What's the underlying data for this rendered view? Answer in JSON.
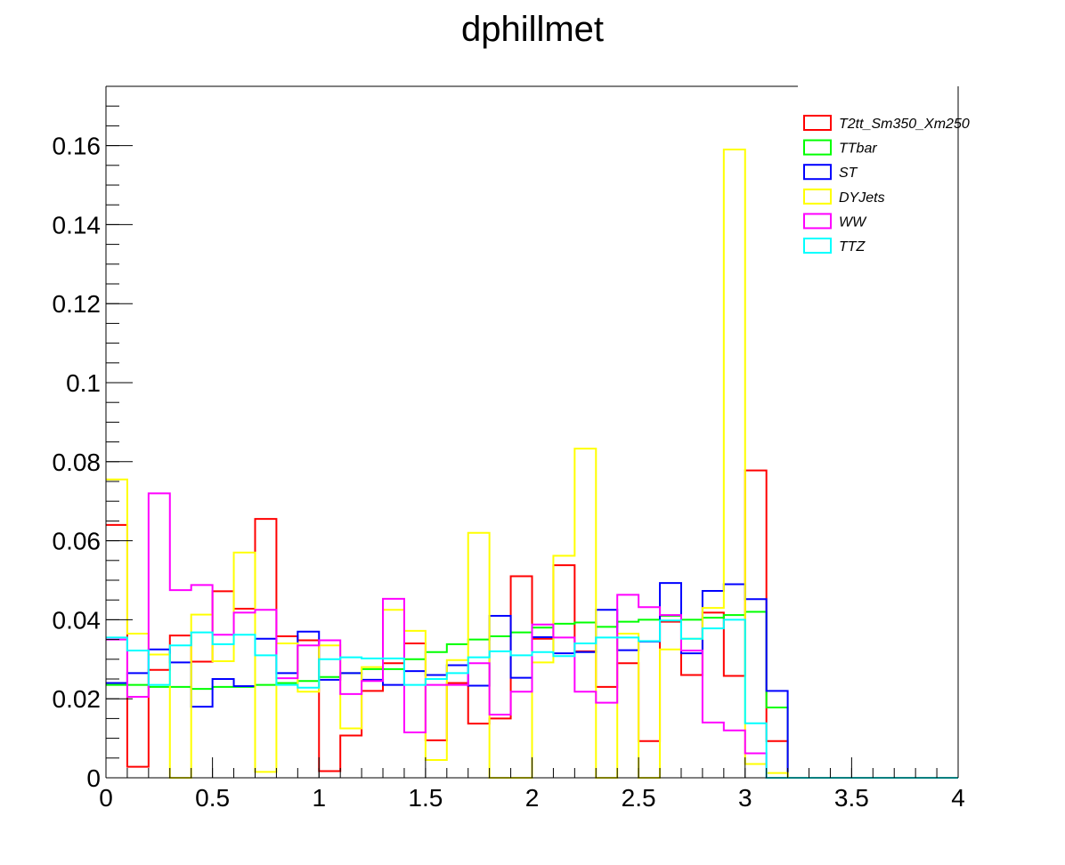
{
  "chart_data": {
    "type": "histogram-step",
    "title": "dphillmet",
    "xlabel": "",
    "ylabel": "",
    "xlim": [
      0,
      4
    ],
    "ylim": [
      0,
      0.175
    ],
    "bin_width": 0.1,
    "x_ticks": [
      {
        "value": 0,
        "label": "0"
      },
      {
        "value": 0.5,
        "label": "0.5"
      },
      {
        "value": 1,
        "label": "1"
      },
      {
        "value": 1.5,
        "label": "1.5"
      },
      {
        "value": 2,
        "label": "2"
      },
      {
        "value": 2.5,
        "label": "2.5"
      },
      {
        "value": 3,
        "label": "3"
      },
      {
        "value": 3.5,
        "label": "3.5"
      },
      {
        "value": 4,
        "label": "4"
      }
    ],
    "y_ticks": [
      {
        "value": 0,
        "label": "0"
      },
      {
        "value": 0.02,
        "label": "0.02"
      },
      {
        "value": 0.04,
        "label": "0.04"
      },
      {
        "value": 0.06,
        "label": "0.06"
      },
      {
        "value": 0.08,
        "label": "0.08"
      },
      {
        "value": 0.1,
        "label": "0.1"
      },
      {
        "value": 0.12,
        "label": "0.12"
      },
      {
        "value": 0.14,
        "label": "0.14"
      },
      {
        "value": 0.16,
        "label": "0.16"
      }
    ],
    "legend_position": "top-right",
    "grid": false,
    "series": [
      {
        "name": "T2tt_Sm350_Xm250",
        "color": "#ff0000",
        "values": [
          0.064,
          0.0028,
          0.0273,
          0.036,
          0.0294,
          0.0472,
          0.0428,
          0.0655,
          0.0358,
          0.0348,
          0.0017,
          0.0107,
          0.022,
          0.029,
          0.034,
          0.0095,
          0.024,
          0.0137,
          0.015,
          0.051,
          0.0352,
          0.0538,
          0.032,
          0.023,
          0.029,
          0.0093,
          0.0395,
          0.026,
          0.0418,
          0.0258,
          0.0778,
          0.0093,
          0,
          0,
          0,
          0,
          0,
          0,
          0,
          0
        ]
      },
      {
        "name": "TTbar",
        "color": "#00ff00",
        "values": [
          0.0235,
          0.0235,
          0.023,
          0.023,
          0.0225,
          0.023,
          0.023,
          0.0235,
          0.024,
          0.0245,
          0.0255,
          0.0265,
          0.0275,
          0.0275,
          0.03,
          0.0318,
          0.0338,
          0.035,
          0.0358,
          0.0368,
          0.038,
          0.039,
          0.0393,
          0.0382,
          0.0395,
          0.04,
          0.041,
          0.04,
          0.0405,
          0.0412,
          0.042,
          0.0178,
          0,
          0,
          0,
          0,
          0,
          0,
          0,
          0
        ]
      },
      {
        "name": "ST",
        "color": "#0000ff",
        "values": [
          0.024,
          0.0265,
          0.0325,
          0.0292,
          0.018,
          0.025,
          0.0232,
          0.0352,
          0.0265,
          0.037,
          0.0248,
          0.0265,
          0.0248,
          0.0235,
          0.027,
          0.026,
          0.0285,
          0.0233,
          0.041,
          0.0253,
          0.0356,
          0.0315,
          0.0318,
          0.0425,
          0.0323,
          0.0345,
          0.0493,
          0.0315,
          0.0473,
          0.049,
          0.0452,
          0.022,
          0,
          0,
          0,
          0,
          0,
          0,
          0,
          0
        ]
      },
      {
        "name": "DYJets",
        "color": "#ffff00",
        "values": [
          0.0755,
          0.0365,
          0.0312,
          0,
          0.0413,
          0.0295,
          0.057,
          0.0015,
          0.034,
          0.0218,
          0.0335,
          0.0125,
          0.028,
          0.0425,
          0.0372,
          0.0045,
          0.0298,
          0.062,
          0,
          0,
          0.0292,
          0.0562,
          0.0833,
          0,
          0.0365,
          0,
          0.0325,
          0.0352,
          0.043,
          0.159,
          0.0035,
          0.0012,
          0,
          0,
          0,
          0,
          0,
          0,
          0,
          0
        ]
      },
      {
        "name": "WW",
        "color": "#ff00ff",
        "values": [
          0.035,
          0.0205,
          0.072,
          0.0475,
          0.0488,
          0.0362,
          0.0418,
          0.0425,
          0.0252,
          0.0335,
          0.0348,
          0.0212,
          0.0245,
          0.0453,
          0.0115,
          0.0235,
          0.0235,
          0.029,
          0.016,
          0.0218,
          0.0388,
          0.0355,
          0.0218,
          0.019,
          0.0463,
          0.0432,
          0.0412,
          0.0322,
          0.014,
          0.012,
          0.0062,
          0,
          0,
          0,
          0,
          0,
          0,
          0,
          0,
          0
        ]
      },
      {
        "name": "TTZ",
        "color": "#00ffff",
        "values": [
          0.0355,
          0.0322,
          0.0235,
          0.0335,
          0.0368,
          0.0338,
          0.0362,
          0.031,
          0.0235,
          0.0228,
          0.03,
          0.0305,
          0.0302,
          0.0302,
          0.0235,
          0.025,
          0.0265,
          0.0305,
          0.032,
          0.031,
          0.0318,
          0.0308,
          0.034,
          0.0355,
          0.0355,
          0.0346,
          0.0398,
          0.0352,
          0.0378,
          0.04,
          0.0138,
          0,
          0,
          0,
          0,
          0,
          0,
          0,
          0,
          0
        ]
      }
    ]
  }
}
